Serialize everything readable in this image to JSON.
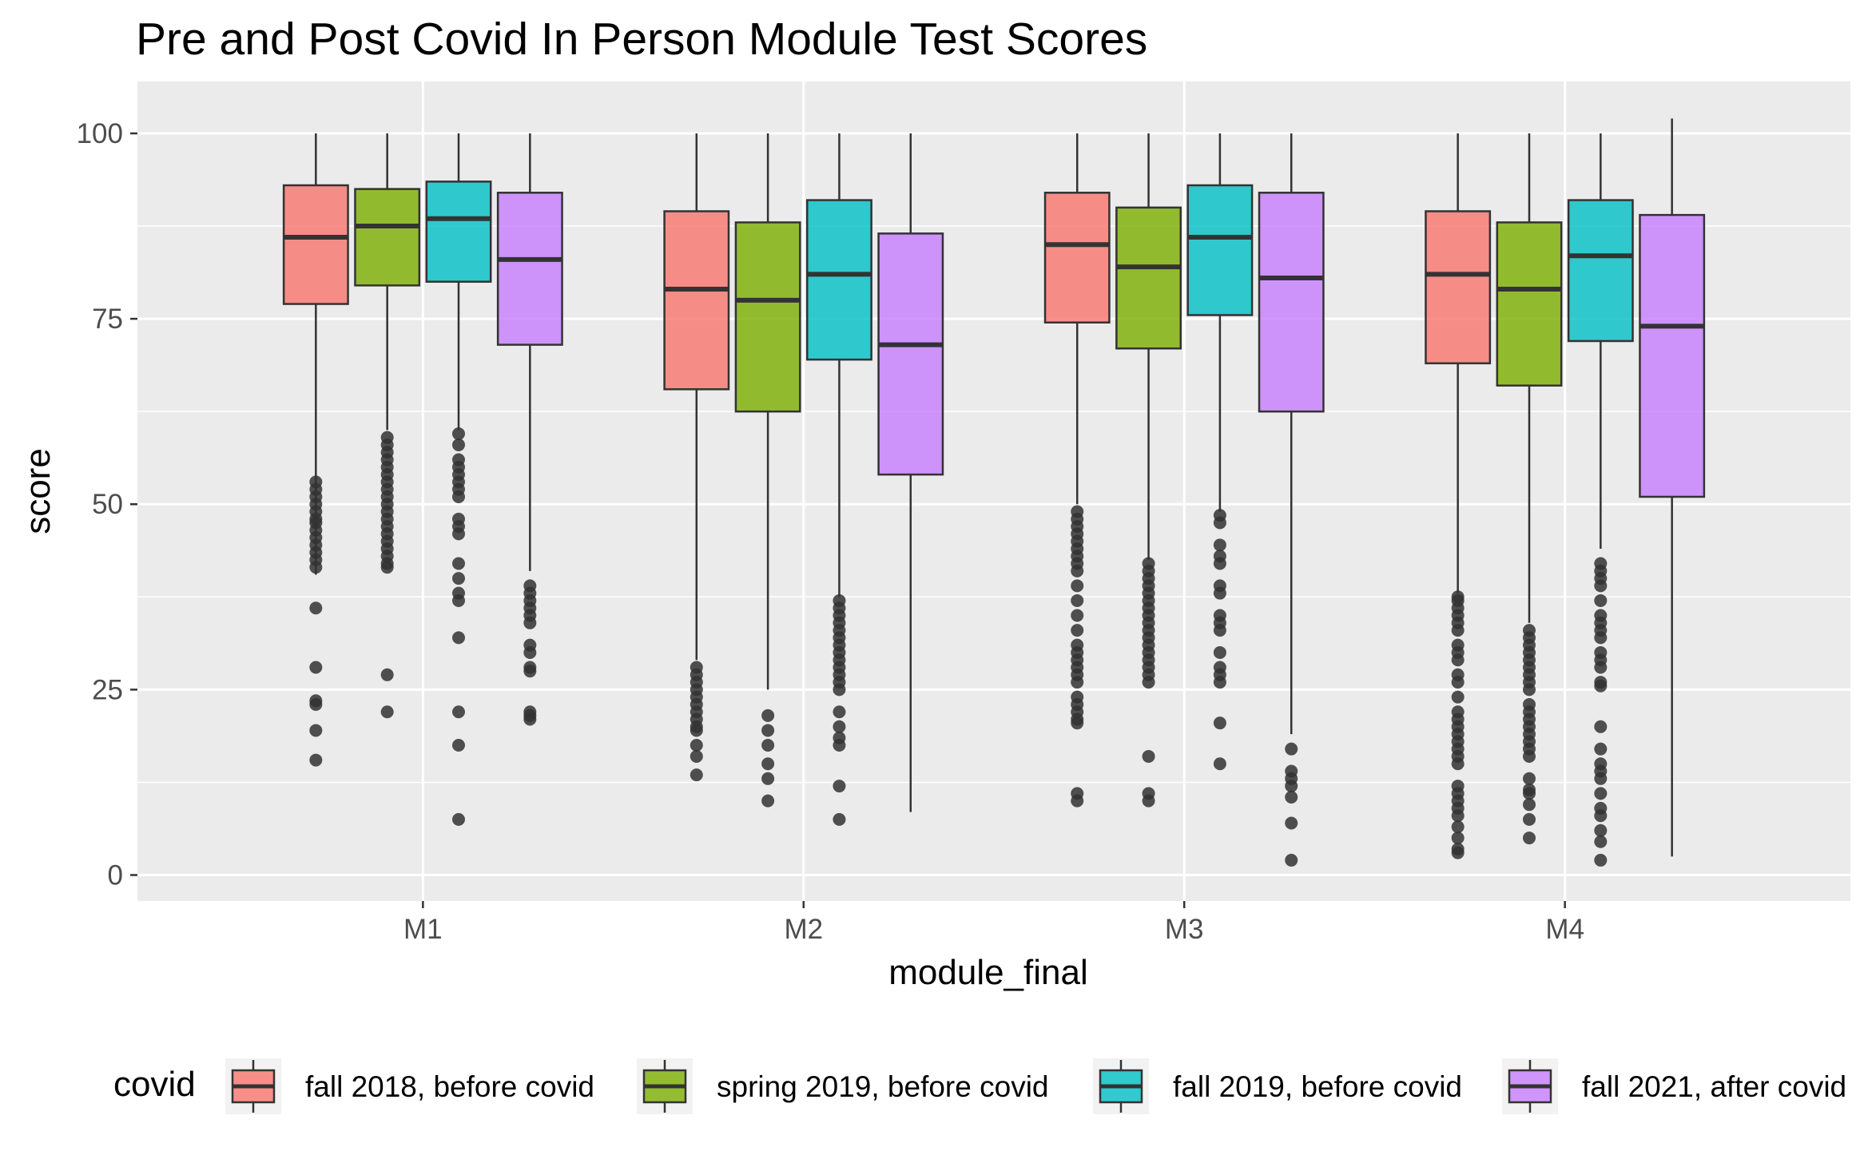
{
  "chart_data": {
    "type": "box",
    "title": "Pre and Post Covid In Person Module Test Scores",
    "xlabel": "module_final",
    "ylabel": "score",
    "ylim": [
      -3.5,
      107
    ],
    "yticks": [
      0,
      25,
      50,
      75,
      100
    ],
    "grid": true,
    "legend_position": "bottom",
    "legend_title": "covid",
    "categories": [
      "M1",
      "M2",
      "M3",
      "M4"
    ],
    "series": [
      {
        "name": "fall 2018, before covid",
        "color": "#F8766D",
        "boxes": [
          {
            "min": 40.5,
            "q1": 77,
            "median": 86,
            "q3": 93,
            "max": 100,
            "outliers": [
              53,
              52,
              51,
              50,
              49,
              48,
              47.5,
              46.5,
              45.5,
              44.5,
              43.5,
              42.5,
              41.5,
              36,
              28,
              23.5,
              23,
              19.5,
              15.5
            ]
          },
          {
            "min": 29,
            "q1": 65.5,
            "median": 79,
            "q3": 89.5,
            "max": 100,
            "outliers": [
              28,
              27,
              26,
              25,
              24,
              23,
              22,
              21,
              20,
              19.5,
              17.5,
              16,
              13.5
            ]
          },
          {
            "min": 50,
            "q1": 74.5,
            "median": 85,
            "q3": 92,
            "max": 100,
            "outliers": [
              49,
              48,
              47,
              46,
              45,
              44,
              43,
              42,
              41,
              39,
              37,
              35,
              33,
              31,
              30,
              29,
              28,
              27,
              26,
              24,
              23,
              22,
              21,
              20.5,
              11,
              10
            ]
          },
          {
            "min": 38,
            "q1": 69,
            "median": 81,
            "q3": 89.5,
            "max": 100,
            "outliers": [
              37.5,
              37,
              36,
              35,
              34,
              33,
              31,
              30,
              29,
              27,
              26,
              24,
              22,
              21,
              20,
              19,
              18,
              17,
              16,
              15,
              12,
              11,
              10,
              9,
              8,
              6.5,
              5,
              3.5,
              3
            ]
          }
        ]
      },
      {
        "name": "spring 2019, before covid",
        "color": "#7CAE00",
        "boxes": [
          {
            "min": 60,
            "q1": 79.5,
            "median": 87.5,
            "q3": 92.5,
            "max": 100,
            "outliers": [
              59,
              58,
              57,
              56,
              55,
              54,
              53,
              52,
              51,
              50,
              49,
              48,
              47,
              46,
              45,
              44,
              43,
              42,
              41.5,
              27,
              22
            ]
          },
          {
            "min": 25,
            "q1": 62.5,
            "median": 77.5,
            "q3": 88,
            "max": 100,
            "outliers": [
              21.5,
              19.5,
              17.5,
              15,
              13,
              10
            ]
          },
          {
            "min": 42.5,
            "q1": 71,
            "median": 82,
            "q3": 90,
            "max": 100,
            "outliers": [
              42,
              41,
              40,
              39,
              38,
              37,
              36,
              35,
              34,
              33,
              32,
              31,
              30,
              29,
              28,
              27,
              26,
              16,
              11,
              10
            ]
          },
          {
            "min": 34,
            "q1": 66,
            "median": 79,
            "q3": 88,
            "max": 100,
            "outliers": [
              33,
              32,
              31,
              30,
              29,
              28,
              27,
              26,
              25,
              23,
              22,
              21,
              20,
              19,
              18,
              17,
              16,
              13,
              11.5,
              11,
              9.5,
              7.5,
              5
            ]
          }
        ]
      },
      {
        "name": "fall 2019, before covid",
        "color": "#00BFC4",
        "boxes": [
          {
            "min": 60,
            "q1": 80,
            "median": 88.5,
            "q3": 93.5,
            "max": 100,
            "outliers": [
              59.5,
              58,
              56,
              55,
              54,
              53,
              52,
              51,
              48,
              47,
              46,
              42,
              40,
              38,
              37,
              32,
              22,
              17.5,
              7.5
            ]
          },
          {
            "min": 37.5,
            "q1": 69.5,
            "median": 81,
            "q3": 91,
            "max": 100,
            "outliers": [
              37,
              36,
              35,
              34,
              33,
              32,
              31,
              30,
              29,
              28,
              27,
              26,
              25,
              22,
              20,
              18.5,
              17.5,
              12,
              7.5
            ]
          },
          {
            "min": 49,
            "q1": 75.5,
            "median": 86,
            "q3": 93,
            "max": 100,
            "outliers": [
              48.5,
              47.5,
              44.5,
              43,
              42,
              39,
              38,
              35,
              34,
              33,
              30,
              28,
              27,
              26,
              20.5,
              15
            ]
          },
          {
            "min": 44,
            "q1": 72,
            "median": 83.5,
            "q3": 91,
            "max": 100,
            "outliers": [
              42,
              41,
              40,
              39,
              37,
              35,
              34,
              33,
              32,
              30,
              29,
              28,
              26,
              25.5,
              20,
              17,
              15,
              14,
              13,
              11,
              9,
              8,
              6,
              4.5,
              2
            ]
          }
        ]
      },
      {
        "name": "fall 2021, after covid",
        "color": "#C77CFF",
        "boxes": [
          {
            "min": 41,
            "q1": 71.5,
            "median": 83,
            "q3": 92,
            "max": 100,
            "outliers": [
              39,
              38,
              37,
              36,
              35,
              34,
              31,
              30,
              28,
              27.5,
              22,
              21.5,
              21
            ]
          },
          {
            "min": 8.5,
            "q1": 54,
            "median": 71.5,
            "q3": 86.5,
            "max": 100,
            "outliers": []
          },
          {
            "min": 19,
            "q1": 62.5,
            "median": 80.5,
            "q3": 92,
            "max": 100,
            "outliers": [
              17,
              14,
              13,
              12,
              10.5,
              7,
              2
            ]
          },
          {
            "min": 2.5,
            "q1": 51,
            "median": 74,
            "q3": 89,
            "max": 102,
            "outliers": []
          }
        ]
      }
    ]
  }
}
